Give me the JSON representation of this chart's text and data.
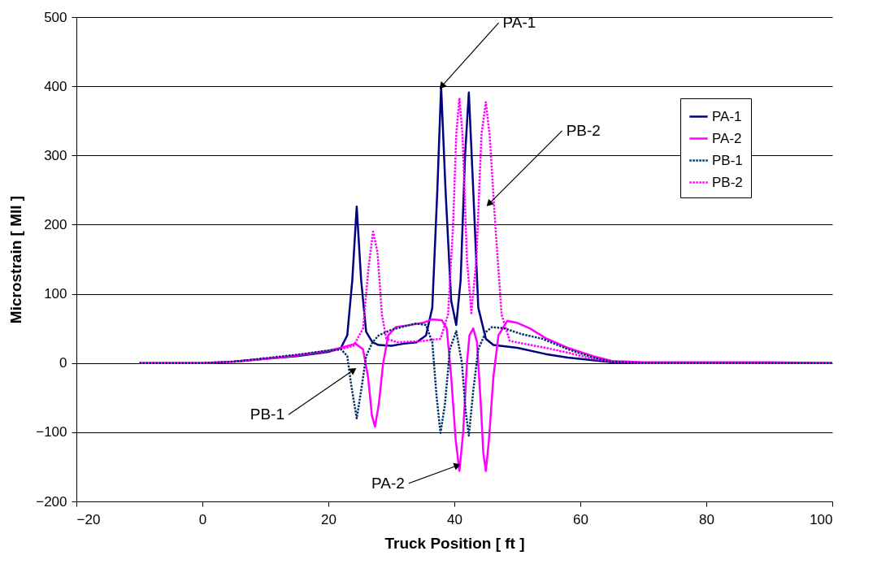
{
  "chart_data": {
    "type": "line",
    "xlabel": "Truck Position [ ft ]",
    "ylabel": "Microstrain [ MII ]",
    "xlim": [
      -20,
      100
    ],
    "xticks": [
      -20,
      0,
      20,
      40,
      60,
      80,
      100
    ],
    "ylim": [
      -200,
      500
    ],
    "yticks": [
      -200,
      -100,
      0,
      100,
      200,
      300,
      400,
      500
    ],
    "grid": "y",
    "legend": "top right",
    "marker": "none",
    "series": [
      {
        "name": "PA-1",
        "color": "#000080",
        "line_style": "solid",
        "x": [
          5,
          10,
          15,
          20,
          22,
          23,
          23.8,
          24.5,
          25.2,
          26,
          27,
          28,
          30,
          32,
          34,
          35.5,
          36.5,
          37.3,
          37.9,
          38.6,
          39.5,
          40.3,
          41,
          41.7,
          42.3,
          43,
          43.8,
          45,
          46.2,
          50,
          54.5,
          58,
          62,
          65,
          70,
          80
        ],
        "values": [
          2,
          6,
          10,
          16,
          22,
          40,
          120,
          226,
          120,
          45,
          30,
          26,
          25,
          28,
          30,
          40,
          80,
          250,
          400,
          250,
          90,
          55,
          120,
          300,
          391,
          250,
          80,
          35,
          26,
          22,
          13,
          8,
          4,
          1,
          0,
          0
        ]
      },
      {
        "name": "PA-2",
        "color": "#ff00ff",
        "line_style": "solid",
        "x": [
          -10,
          0,
          5,
          10,
          15,
          20,
          22,
          24.3,
          25.5,
          26.3,
          26.9,
          27.4,
          28,
          28.7,
          29.5,
          30.7,
          33,
          35,
          36.4,
          38,
          38.8,
          39.5,
          40.2,
          40.8,
          41.4,
          42,
          42.4,
          43,
          43.6,
          44.2,
          44.6,
          45,
          45.5,
          46.2,
          47,
          48.4,
          50,
          52,
          54.5,
          58,
          62,
          65,
          70,
          80,
          90,
          100
        ],
        "values": [
          0,
          0,
          2,
          6,
          11,
          18,
          22,
          28,
          20,
          -20,
          -75,
          -92,
          -60,
          0,
          40,
          52,
          55,
          58,
          63,
          62,
          50,
          -20,
          -110,
          -156,
          -100,
          0,
          40,
          50,
          30,
          -60,
          -130,
          -156,
          -110,
          -20,
          40,
          61,
          58,
          50,
          36,
          22,
          10,
          3,
          1,
          1,
          1,
          0
        ]
      },
      {
        "name": "PB-1",
        "color": "#003366",
        "line_style": "dashed",
        "x": [
          -10,
          0,
          5,
          10,
          15,
          20,
          22,
          23,
          23.6,
          24.5,
          25.2,
          26,
          27,
          28,
          30,
          33.8,
          35.5,
          36.5,
          37.2,
          37.8,
          38.5,
          39.3,
          40.3,
          41.2,
          41.8,
          42.3,
          43,
          43.8,
          45,
          46,
          48,
          50.6,
          54,
          58,
          62,
          65,
          70,
          80,
          90,
          100
        ],
        "values": [
          0,
          0,
          2,
          7,
          12,
          18,
          20,
          10,
          -30,
          -80,
          -40,
          10,
          30,
          40,
          48,
          57,
          55,
          30,
          -50,
          -101,
          -60,
          20,
          46,
          0,
          -70,
          -105,
          -40,
          20,
          45,
          52,
          50,
          42,
          35,
          20,
          8,
          2,
          0,
          0,
          0,
          0
        ]
      },
      {
        "name": "PB-2",
        "color": "#ff00ff",
        "line_style": "dashed",
        "x": [
          -10,
          0,
          5,
          10,
          15,
          20,
          22,
          24,
          25.5,
          26.4,
          27.1,
          27.8,
          28.5,
          29.2,
          31,
          35.1,
          37.8,
          39,
          39.8,
          40.3,
          40.8,
          41.3,
          42,
          42.7,
          43.5,
          44.3,
          45,
          45.6,
          46.5,
          47.5,
          48.8,
          51,
          54.5,
          58,
          62,
          65,
          70,
          80,
          90,
          100
        ],
        "values": [
          0,
          0,
          2,
          6,
          11,
          17,
          20,
          25,
          50,
          140,
          190,
          160,
          70,
          35,
          30,
          32,
          35,
          70,
          200,
          330,
          383,
          330,
          150,
          72,
          150,
          330,
          377,
          330,
          200,
          70,
          32,
          28,
          22,
          15,
          6,
          2,
          0,
          0,
          0,
          0
        ]
      }
    ],
    "annotations": [
      {
        "text": "PA-1",
        "x": 38,
        "y": 400
      },
      {
        "text": "PB-2",
        "x": 45.5,
        "y": 230
      },
      {
        "text": "PB-1",
        "x": 24,
        "y": -10
      },
      {
        "text": "PA-2",
        "x": 40.5,
        "y": -148
      }
    ]
  }
}
